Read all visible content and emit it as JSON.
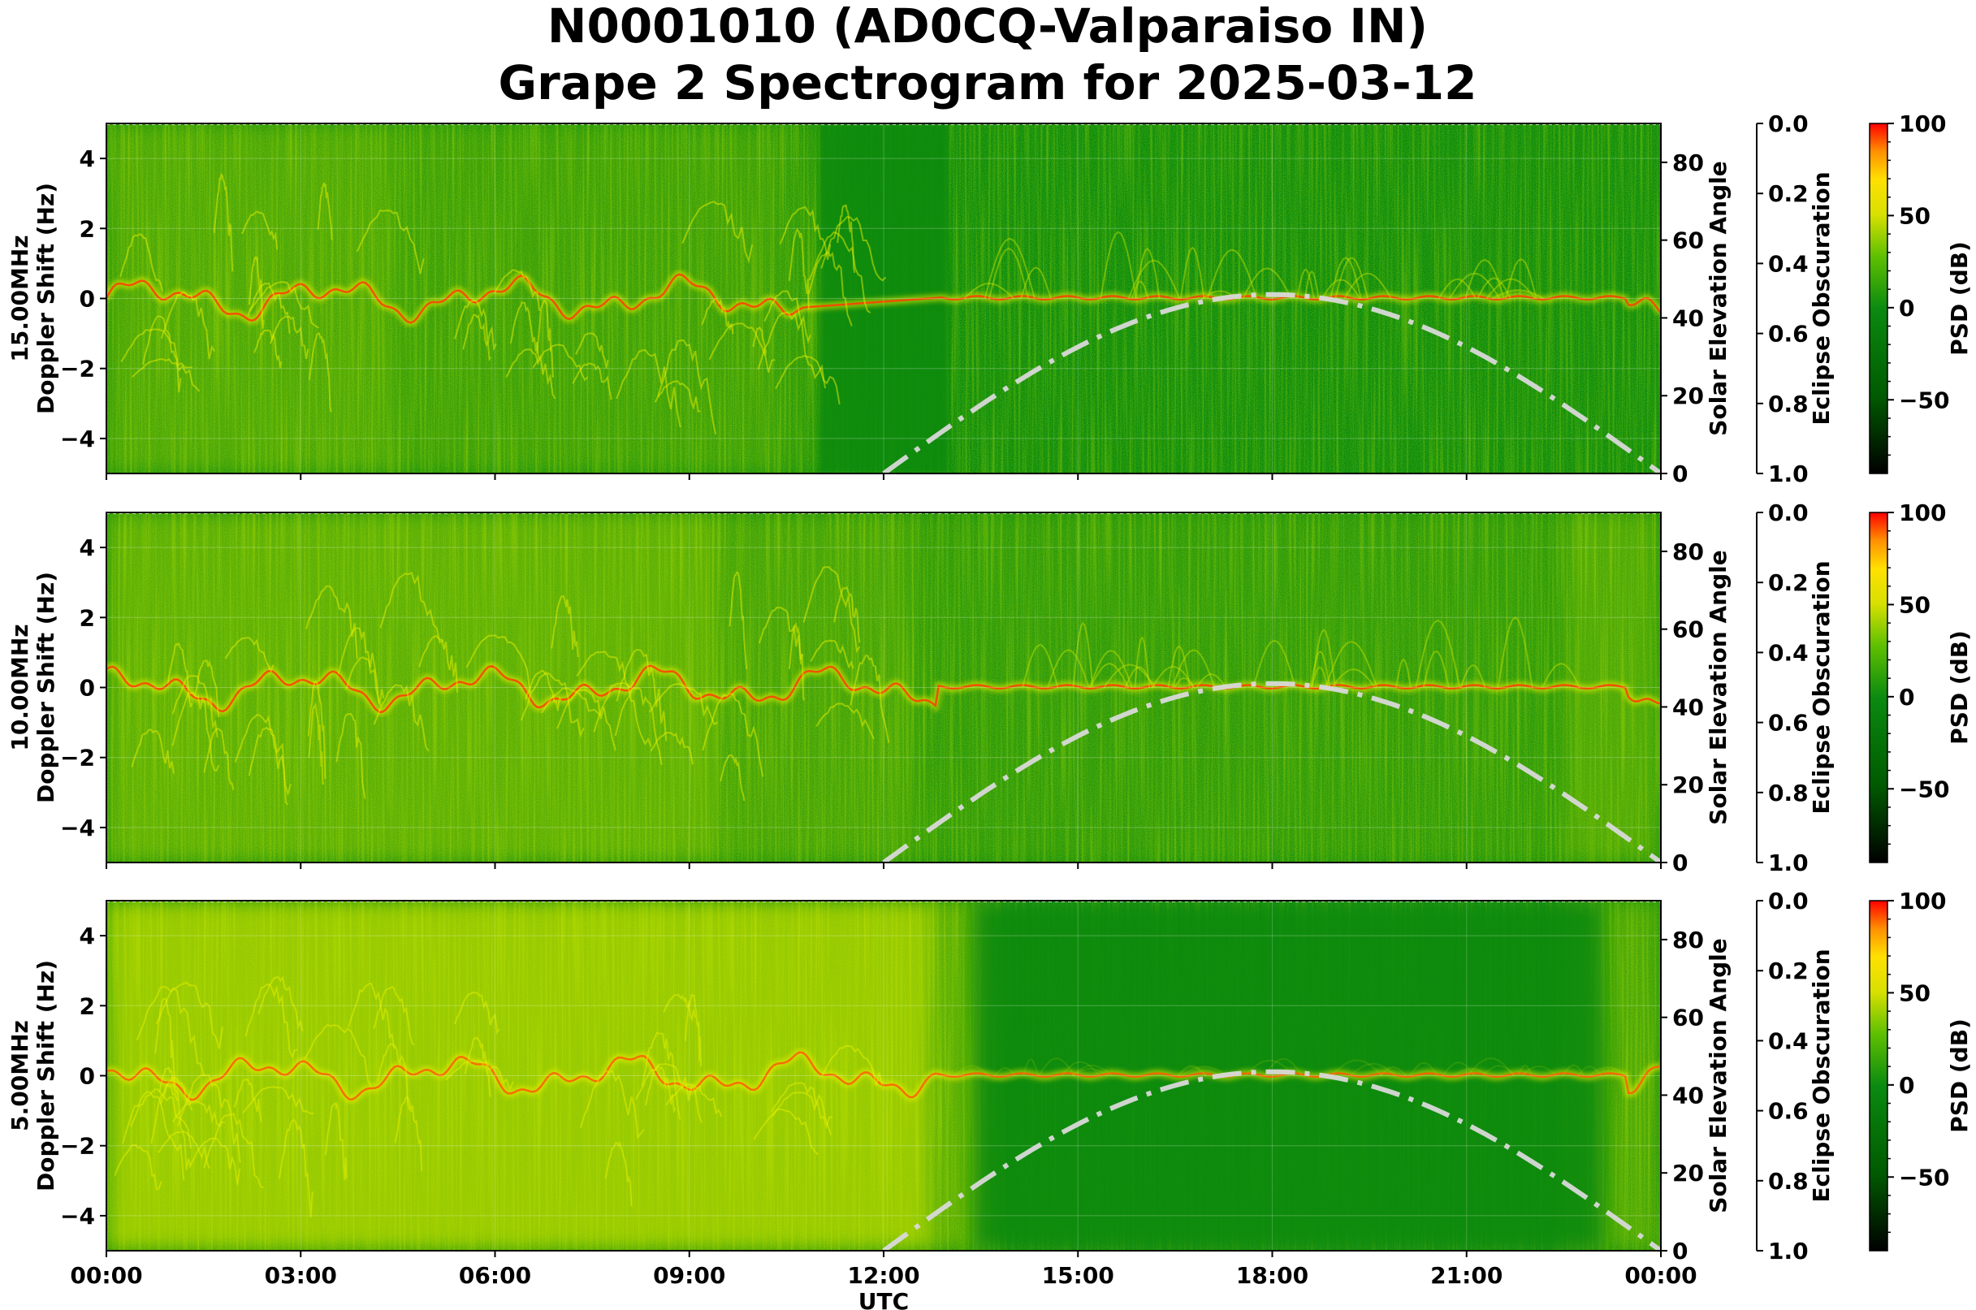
{
  "title_line1": "N0001010 (AD0CQ-Valparaiso IN)",
  "title_line2": "Grape 2 Spectrogram for 2025-03-12",
  "chart_data": [
    {
      "type": "heatmap",
      "panel_label": "15.00MHz",
      "ylabel": "15.00MHz\nDoppler Shift (Hz)",
      "ylim": [
        -5,
        5
      ],
      "yticks": [
        "4",
        "2",
        "0",
        "−2",
        "−4"
      ],
      "ytick_values": [
        4,
        2,
        0,
        -2,
        -4
      ],
      "xlim_hours": [
        0,
        24
      ],
      "xticks": [
        "00:00",
        "03:00",
        "06:00",
        "09:00",
        "12:00",
        "15:00",
        "18:00",
        "21:00",
        "00:00"
      ],
      "x2_label": "Solar Elevation Angle",
      "x2_ticks": [
        "0",
        "20",
        "40",
        "60",
        "80"
      ],
      "eclipse_label": "Eclipse Obscuration",
      "eclipse_ticks": [
        "0.0",
        "0.2",
        "0.4",
        "0.6",
        "0.8",
        "1.0"
      ],
      "colorbar_label": "PSD (dB)",
      "colorbar_ticks": [
        "100",
        "50",
        "0",
        "−50"
      ],
      "colorbar_range": [
        -90,
        100
      ],
      "carrier_quiet_hours": [
        [
          11.0,
          13.0
        ]
      ],
      "solar_elevation_peak_deg": 46,
      "solar_noon_utc": "18:00"
    },
    {
      "type": "heatmap",
      "panel_label": "10.00MHz",
      "ylabel": "10.00MHz\nDoppler Shift (Hz)",
      "ylim": [
        -5,
        5
      ],
      "yticks": [
        "4",
        "2",
        "0",
        "−2",
        "−4"
      ],
      "ytick_values": [
        4,
        2,
        0,
        -2,
        -4
      ],
      "xlim_hours": [
        0,
        24
      ],
      "xticks": [
        "00:00",
        "03:00",
        "06:00",
        "09:00",
        "12:00",
        "15:00",
        "18:00",
        "21:00",
        "00:00"
      ],
      "x2_label": "Solar Elevation Angle",
      "x2_ticks": [
        "0",
        "20",
        "40",
        "60",
        "80"
      ],
      "eclipse_label": "Eclipse Obscuration",
      "eclipse_ticks": [
        "0.0",
        "0.2",
        "0.4",
        "0.6",
        "0.8",
        "1.0"
      ],
      "colorbar_label": "PSD (dB)",
      "colorbar_ticks": [
        "100",
        "50",
        "0",
        "−50"
      ],
      "colorbar_range": [
        -90,
        100
      ],
      "solar_elevation_peak_deg": 46,
      "solar_noon_utc": "18:00"
    },
    {
      "type": "heatmap",
      "panel_label": "5.00MHz",
      "ylabel": "5.00MHz\nDoppler Shift (Hz)",
      "xlabel": "UTC",
      "ylim": [
        -5,
        5
      ],
      "yticks": [
        "4",
        "2",
        "0",
        "−2",
        "−4"
      ],
      "ytick_values": [
        4,
        2,
        0,
        -2,
        -4
      ],
      "xlim_hours": [
        0,
        24
      ],
      "xticks": [
        "00:00",
        "03:00",
        "06:00",
        "09:00",
        "12:00",
        "15:00",
        "18:00",
        "21:00",
        "00:00"
      ],
      "x2_label": "Solar Elevation Angle",
      "x2_ticks": [
        "0",
        "20",
        "40",
        "60",
        "80"
      ],
      "eclipse_label": "Eclipse Obscuration",
      "eclipse_ticks": [
        "0.0",
        "0.2",
        "0.4",
        "0.6",
        "0.8",
        "1.0"
      ],
      "colorbar_label": "PSD (dB)",
      "colorbar_ticks": [
        "100",
        "50",
        "0",
        "−50"
      ],
      "colorbar_range": [
        -90,
        100
      ],
      "day_quiet_hours": [
        [
          13.0,
          23.0
        ]
      ],
      "solar_elevation_peak_deg": 46,
      "solar_noon_utc": "18:00"
    }
  ],
  "solar_curve": {
    "rise_hour": 12.0,
    "set_hour": 24.0,
    "peak_hour": 18.0,
    "peak_deg": 46,
    "color": "#d9d9d9"
  },
  "colors": {
    "background_green": "#0a8a10",
    "bright_yellow": "#f0f000",
    "trace_red": "#ff2a00",
    "colormap": [
      "#000000",
      "#005a00",
      "#0a8a10",
      "#5fc000",
      "#d8e000",
      "#ffe000",
      "#ff9000",
      "#ff0000"
    ]
  }
}
